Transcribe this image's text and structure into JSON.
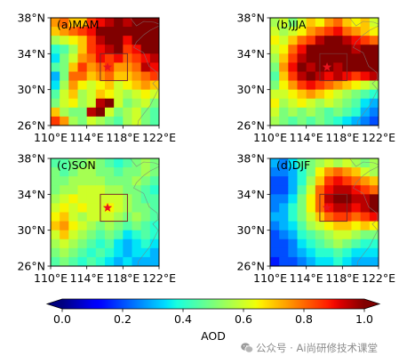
{
  "chart_data": [
    {
      "type": "heatmap",
      "title": "(a)MAM",
      "lon": [
        110.5,
        111.5,
        112.5,
        113.5,
        114.5,
        115.5,
        116.5,
        117.5,
        118.5,
        119.5,
        120.5,
        121.5
      ],
      "lat": [
        37.5,
        36.5,
        35.5,
        34.5,
        33.5,
        32.5,
        31.5,
        30.5,
        29.5,
        28.5,
        27.5,
        26.5
      ],
      "values": [
        [
          0.75,
          0.8,
          0.7,
          0.7,
          0.85,
          0.9,
          0.95,
          1.0,
          0.95,
          1.05,
          1.1,
          1.05
        ],
        [
          0.7,
          0.75,
          0.8,
          0.85,
          0.9,
          1.0,
          1.05,
          1.1,
          1.0,
          1.05,
          1.1,
          1.1
        ],
        [
          0.55,
          0.6,
          0.65,
          0.7,
          0.85,
          0.95,
          1.0,
          1.05,
          0.9,
          1.0,
          1.05,
          1.1
        ],
        [
          0.4,
          0.45,
          0.55,
          0.7,
          0.85,
          0.9,
          0.95,
          1.0,
          0.85,
          0.9,
          1.0,
          1.0
        ],
        [
          0.35,
          0.5,
          0.6,
          0.75,
          0.8,
          0.9,
          0.85,
          0.9,
          0.8,
          0.85,
          0.9,
          0.95
        ],
        [
          0.45,
          0.5,
          0.7,
          0.85,
          0.75,
          0.8,
          0.85,
          0.75,
          0.75,
          0.8,
          0.95,
          0.9
        ],
        [
          0.3,
          0.5,
          0.8,
          0.8,
          0.7,
          0.75,
          0.8,
          0.7,
          0.7,
          0.75,
          0.8,
          0.85
        ],
        [
          0.35,
          0.55,
          0.75,
          0.65,
          0.6,
          0.65,
          0.7,
          0.6,
          0.65,
          0.7,
          0.75,
          0.7
        ],
        [
          0.45,
          0.6,
          0.7,
          0.55,
          0.6,
          0.7,
          0.65,
          0.6,
          0.55,
          0.6,
          0.65,
          0.6
        ],
        [
          0.5,
          0.6,
          0.65,
          0.55,
          0.6,
          0.95,
          1.0,
          0.6,
          0.5,
          0.55,
          0.6,
          0.5
        ],
        [
          0.7,
          0.55,
          0.5,
          0.5,
          0.95,
          1.0,
          0.6,
          0.5,
          0.55,
          0.6,
          0.5,
          0.45
        ],
        [
          0.85,
          0.75,
          0.55,
          0.5,
          0.6,
          0.55,
          0.5,
          0.45,
          0.55,
          0.6,
          0.5,
          0.45
        ]
      ],
      "xlim": [
        110,
        122
      ],
      "ylim": [
        26,
        38
      ],
      "xticks": [
        110,
        114,
        118,
        122
      ],
      "xticklabels": [
        "110°E",
        "114°E",
        "118°E",
        "122°E"
      ],
      "yticks": [
        26,
        30,
        34,
        38
      ],
      "yticklabels": [
        "26°N",
        "30°N",
        "34°N",
        "38°N"
      ],
      "box": {
        "lon": [
          115.5,
          118.5
        ],
        "lat": [
          31,
          34
        ],
        "color": "#7a2a2a"
      },
      "marker": {
        "lon": 116.3,
        "lat": 32.5,
        "symbol": "star",
        "color": "#e8141e"
      }
    },
    {
      "type": "heatmap",
      "title": "(b)JJA",
      "lon": [
        110.5,
        111.5,
        112.5,
        113.5,
        114.5,
        115.5,
        116.5,
        117.5,
        118.5,
        119.5,
        120.5,
        121.5
      ],
      "lat": [
        37.5,
        36.5,
        35.5,
        34.5,
        33.5,
        32.5,
        31.5,
        30.5,
        29.5,
        28.5,
        27.5,
        26.5
      ],
      "values": [
        [
          0.55,
          0.6,
          0.5,
          0.6,
          0.7,
          0.65,
          0.75,
          0.8,
          0.7,
          0.65,
          0.7,
          0.6
        ],
        [
          0.6,
          0.55,
          0.6,
          0.65,
          0.75,
          0.8,
          0.85,
          0.9,
          0.8,
          0.75,
          0.7,
          0.65
        ],
        [
          0.65,
          0.6,
          0.7,
          0.8,
          0.85,
          0.95,
          1.0,
          1.05,
          0.95,
          0.9,
          0.85,
          0.8
        ],
        [
          0.6,
          0.65,
          0.8,
          0.9,
          1.0,
          1.05,
          1.1,
          1.05,
          1.0,
          0.95,
          1.0,
          1.05
        ],
        [
          0.55,
          0.7,
          0.85,
          0.95,
          1.05,
          1.0,
          1.05,
          1.1,
          1.05,
          1.0,
          1.05,
          1.1
        ],
        [
          0.5,
          0.75,
          0.9,
          1.0,
          0.95,
          1.05,
          1.0,
          0.95,
          1.0,
          1.05,
          1.0,
          1.05
        ],
        [
          0.45,
          0.7,
          0.85,
          0.95,
          1.0,
          0.95,
          0.9,
          0.95,
          0.9,
          0.85,
          0.9,
          0.95
        ],
        [
          0.5,
          0.65,
          0.75,
          0.85,
          0.9,
          0.85,
          0.8,
          0.75,
          0.7,
          0.65,
          0.6,
          0.55
        ],
        [
          0.6,
          0.6,
          0.65,
          0.7,
          0.75,
          0.7,
          0.65,
          0.6,
          0.55,
          0.5,
          0.45,
          0.4
        ],
        [
          0.65,
          0.55,
          0.6,
          0.65,
          0.6,
          0.55,
          0.6,
          0.55,
          0.5,
          0.45,
          0.35,
          0.3
        ],
        [
          0.6,
          0.5,
          0.55,
          0.5,
          0.55,
          0.5,
          0.45,
          0.5,
          0.45,
          0.4,
          0.3,
          0.25
        ],
        [
          0.55,
          0.5,
          0.45,
          0.5,
          0.45,
          0.5,
          0.45,
          0.4,
          0.35,
          0.3,
          0.25,
          0.2
        ]
      ],
      "xlim": [
        110,
        122
      ],
      "ylim": [
        26,
        38
      ],
      "xticks": [
        110,
        114,
        118,
        122
      ],
      "xticklabels": [
        "110°E",
        "114°E",
        "118°E",
        "122°E"
      ],
      "yticks": [
        26,
        30,
        34,
        38
      ],
      "yticklabels": [
        "26°N",
        "30°N",
        "34°N",
        "38°N"
      ],
      "box": {
        "lon": [
          115.5,
          118.5
        ],
        "lat": [
          31,
          34
        ],
        "color": "#7a2a2a"
      },
      "marker": {
        "lon": 116.3,
        "lat": 32.5,
        "symbol": "star",
        "color": "#e8141e"
      }
    },
    {
      "type": "heatmap",
      "title": "(c)SON",
      "lon": [
        110.5,
        111.5,
        112.5,
        113.5,
        114.5,
        115.5,
        116.5,
        117.5,
        118.5,
        119.5,
        120.5,
        121.5
      ],
      "lat": [
        37.5,
        36.5,
        35.5,
        34.5,
        33.5,
        32.5,
        31.5,
        30.5,
        29.5,
        28.5,
        27.5,
        26.5
      ],
      "values": [
        [
          0.45,
          0.45,
          0.5,
          0.5,
          0.55,
          0.5,
          0.45,
          0.4,
          0.45,
          0.5,
          0.55,
          0.5
        ],
        [
          0.5,
          0.45,
          0.5,
          0.55,
          0.55,
          0.5,
          0.5,
          0.45,
          0.5,
          0.5,
          0.55,
          0.5
        ],
        [
          0.5,
          0.5,
          0.55,
          0.55,
          0.55,
          0.55,
          0.5,
          0.5,
          0.5,
          0.55,
          0.5,
          0.45
        ],
        [
          0.5,
          0.55,
          0.55,
          0.6,
          0.6,
          0.6,
          0.55,
          0.55,
          0.5,
          0.5,
          0.45,
          0.4
        ],
        [
          0.55,
          0.6,
          0.65,
          0.6,
          0.6,
          0.6,
          0.6,
          0.6,
          0.55,
          0.5,
          0.45,
          0.45
        ],
        [
          0.6,
          0.65,
          0.6,
          0.65,
          0.6,
          0.6,
          0.65,
          0.6,
          0.55,
          0.5,
          0.5,
          0.45
        ],
        [
          0.65,
          0.7,
          0.6,
          0.55,
          0.6,
          0.6,
          0.6,
          0.55,
          0.5,
          0.55,
          0.5,
          0.45
        ],
        [
          0.7,
          0.75,
          0.65,
          0.6,
          0.55,
          0.5,
          0.55,
          0.5,
          0.45,
          0.5,
          0.45,
          0.4
        ],
        [
          0.6,
          0.7,
          0.6,
          0.55,
          0.5,
          0.45,
          0.5,
          0.45,
          0.35,
          0.4,
          0.45,
          0.4
        ],
        [
          0.55,
          0.6,
          0.55,
          0.5,
          0.45,
          0.4,
          0.45,
          0.35,
          0.3,
          0.35,
          0.4,
          0.35
        ],
        [
          0.5,
          0.55,
          0.5,
          0.45,
          0.4,
          0.45,
          0.4,
          0.35,
          0.3,
          0.35,
          0.35,
          0.3
        ],
        [
          0.45,
          0.5,
          0.45,
          0.4,
          0.45,
          0.4,
          0.35,
          0.3,
          0.35,
          0.3,
          0.3,
          0.3
        ]
      ],
      "xlim": [
        110,
        122
      ],
      "ylim": [
        26,
        38
      ],
      "xticks": [
        110,
        114,
        118,
        122
      ],
      "xticklabels": [
        "110°E",
        "114°E",
        "118°E",
        "122°E"
      ],
      "yticks": [
        26,
        30,
        34,
        38
      ],
      "yticklabels": [
        "26°N",
        "30°N",
        "34°N",
        "38°N"
      ],
      "box": {
        "lon": [
          115.5,
          118.5
        ],
        "lat": [
          31,
          34
        ],
        "color": "#7a2a2a"
      },
      "marker": {
        "lon": 116.3,
        "lat": 32.5,
        "symbol": "star",
        "color": "#e8141e"
      }
    },
    {
      "type": "heatmap",
      "title": "(d)DJF",
      "lon": [
        110.5,
        111.5,
        112.5,
        113.5,
        114.5,
        115.5,
        116.5,
        117.5,
        118.5,
        119.5,
        120.5,
        121.5
      ],
      "lat": [
        37.5,
        36.5,
        35.5,
        34.5,
        33.5,
        32.5,
        31.5,
        30.5,
        29.5,
        28.5,
        27.5,
        26.5
      ],
      "values": [
        [
          0.3,
          0.25,
          0.35,
          0.45,
          0.5,
          0.55,
          0.6,
          0.55,
          0.6,
          0.55,
          0.5,
          0.55
        ],
        [
          0.25,
          0.25,
          0.3,
          0.4,
          0.5,
          0.65,
          0.75,
          0.8,
          0.75,
          0.7,
          0.6,
          0.55
        ],
        [
          0.2,
          0.2,
          0.3,
          0.4,
          0.55,
          0.7,
          0.85,
          0.9,
          0.85,
          0.8,
          0.75,
          0.7
        ],
        [
          0.2,
          0.2,
          0.3,
          0.45,
          0.6,
          0.8,
          0.9,
          0.95,
          0.95,
          0.9,
          0.85,
          0.8
        ],
        [
          0.25,
          0.25,
          0.35,
          0.5,
          0.65,
          0.8,
          0.95,
          1.0,
          1.0,
          0.95,
          0.95,
          1.0
        ],
        [
          0.25,
          0.3,
          0.4,
          0.5,
          0.65,
          0.8,
          0.9,
          0.95,
          0.95,
          0.9,
          0.95,
          1.05
        ],
        [
          0.3,
          0.3,
          0.4,
          0.5,
          0.6,
          0.7,
          0.8,
          0.85,
          0.85,
          0.8,
          0.85,
          0.9
        ],
        [
          0.25,
          0.3,
          0.35,
          0.45,
          0.55,
          0.6,
          0.65,
          0.7,
          0.7,
          0.65,
          0.7,
          0.65
        ],
        [
          0.2,
          0.25,
          0.3,
          0.4,
          0.45,
          0.5,
          0.55,
          0.6,
          0.6,
          0.55,
          0.5,
          0.5
        ],
        [
          0.2,
          0.2,
          0.25,
          0.35,
          0.4,
          0.45,
          0.5,
          0.55,
          0.5,
          0.45,
          0.4,
          0.4
        ],
        [
          0.2,
          0.2,
          0.25,
          0.3,
          0.35,
          0.4,
          0.4,
          0.45,
          0.4,
          0.35,
          0.35,
          0.35
        ],
        [
          0.15,
          0.2,
          0.2,
          0.25,
          0.3,
          0.35,
          0.35,
          0.4,
          0.35,
          0.3,
          0.3,
          0.3
        ]
      ],
      "xlim": [
        110,
        122
      ],
      "ylim": [
        26,
        38
      ],
      "xticks": [
        110,
        114,
        118,
        122
      ],
      "xticklabels": [
        "110°E",
        "114°E",
        "118°E",
        "122°E"
      ],
      "yticks": [
        26,
        30,
        34,
        38
      ],
      "yticklabels": [
        "26°N",
        "30°N",
        "34°N",
        "38°N"
      ],
      "box": {
        "lon": [
          115.5,
          118.5
        ],
        "lat": [
          31,
          34
        ],
        "color": "#7a2a2a"
      },
      "marker": {
        "lon": 116.3,
        "lat": 32.5,
        "symbol": "star",
        "color": "#e8141e"
      }
    }
  ],
  "colorbar": {
    "label": "AOD",
    "vmin": 0.0,
    "vmax": 1.0,
    "ticks": [
      0.0,
      0.2,
      0.4,
      0.6,
      0.8,
      1.0
    ],
    "ticklabels": [
      "0.0",
      "0.2",
      "0.4",
      "0.6",
      "0.8",
      "1.0"
    ],
    "colormap": "jet",
    "extend": "both"
  },
  "watermark": {
    "text": "公众号 · Ai尚研修技术课堂",
    "icon": "wechat-icon"
  }
}
